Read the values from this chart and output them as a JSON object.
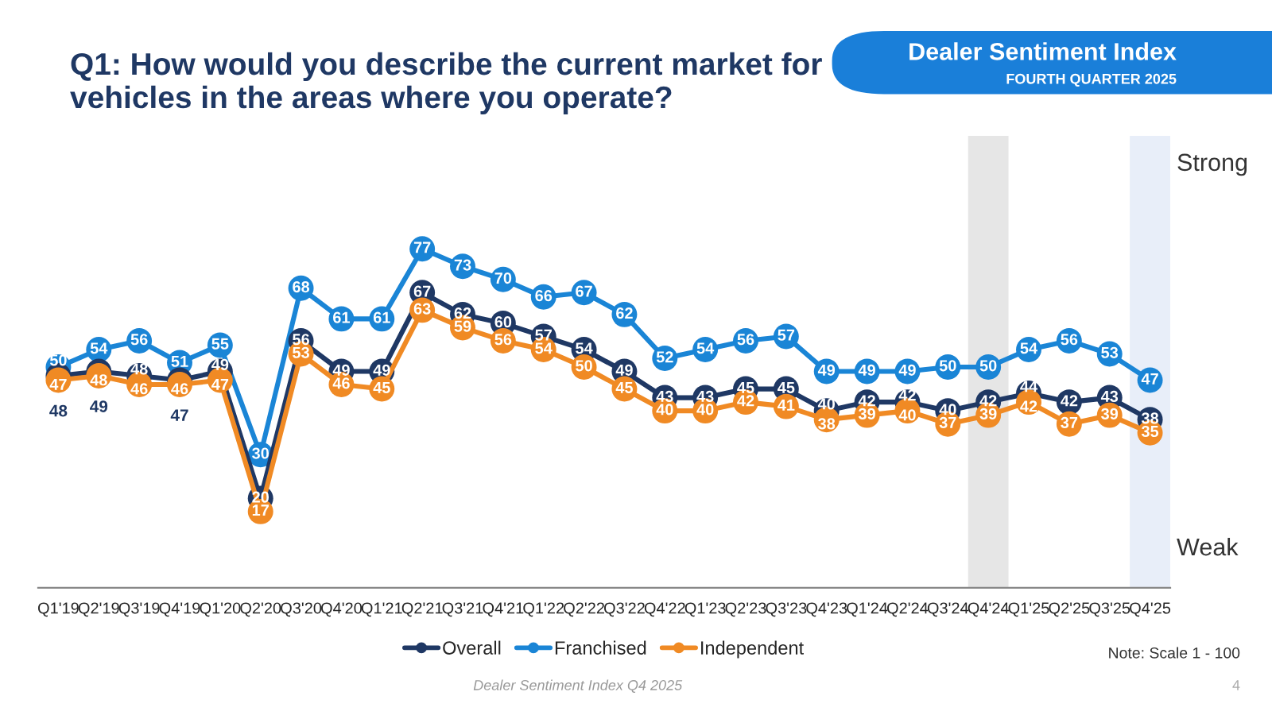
{
  "chart_data": {
    "type": "line",
    "title": "Q1: How would you describe the current market for\nvehicles in the areas where you operate?",
    "categories": [
      "Q1'19",
      "Q2'19",
      "Q3'19",
      "Q4'19",
      "Q1'20",
      "Q2'20",
      "Q3'20",
      "Q4'20",
      "Q1'21",
      "Q2'21",
      "Q3'21",
      "Q4'21",
      "Q1'22",
      "Q2'22",
      "Q3'22",
      "Q4'22",
      "Q1'23",
      "Q2'23",
      "Q3'23",
      "Q4'23",
      "Q1'24",
      "Q2'24",
      "Q3'24",
      "Q4'24",
      "Q1'25",
      "Q2'25",
      "Q3'25",
      "Q4'25"
    ],
    "series": [
      {
        "name": "Overall",
        "color": "#1f3864",
        "values": [
          48,
          49,
          48,
          47,
          49,
          20,
          56,
          49,
          49,
          67,
          62,
          60,
          57,
          54,
          49,
          43,
          43,
          45,
          45,
          40,
          42,
          42,
          40,
          42,
          44,
          42,
          43,
          38
        ]
      },
      {
        "name": "Franchised",
        "color": "#1a85d6",
        "values": [
          50,
          54,
          56,
          51,
          55,
          30,
          68,
          61,
          61,
          77,
          73,
          70,
          66,
          67,
          62,
          52,
          54,
          56,
          57,
          49,
          49,
          49,
          50,
          50,
          54,
          56,
          53,
          47
        ]
      },
      {
        "name": "Independent",
        "color": "#f08a24",
        "values": [
          47,
          48,
          46,
          46,
          47,
          17,
          53,
          46,
          45,
          63,
          59,
          56,
          54,
          50,
          45,
          40,
          40,
          42,
          41,
          38,
          39,
          40,
          37,
          39,
          42,
          37,
          39,
          35
        ]
      }
    ],
    "tick_labels": "x",
    "data_labels": true,
    "marker": "circle",
    "line_style": "solid",
    "grid": false,
    "legend": "bottom",
    "bands": [
      {
        "axis": "x",
        "from": "Q4'24",
        "to": "Q4'24",
        "color": "#e6e6e6"
      },
      {
        "axis": "x",
        "from": "Q4'25",
        "to": "Q4'25",
        "color": "#e8eef9"
      }
    ],
    "annotations": [
      "Dealer Sentiment Index",
      "FOURTH QUARTER 2025",
      "Strong",
      "Weak",
      "Note: Scale 1 - 100",
      "Dealer Sentiment Index Q4 2025",
      "4"
    ]
  }
}
